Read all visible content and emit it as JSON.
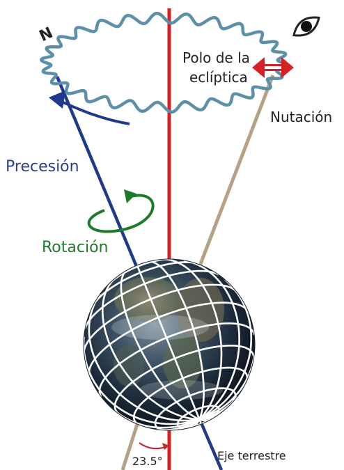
{
  "labels": {
    "north": "N",
    "ecliptic_pole_line1": "Polo de la",
    "ecliptic_pole_line2": "eclíptica",
    "nutation": "Nutación",
    "precession": "Precesión",
    "rotation": "Rotación",
    "earth_axis": "Eje terrestre",
    "tilt_angle": "23.5°"
  },
  "icons": {
    "eye": "eye-icon",
    "double_arrow": "double-arrow-icon"
  },
  "colors": {
    "ecliptic_axis": "#d42027",
    "earth_axis": "#1f3a8c",
    "precession_text": "#2b3d8f",
    "cone_edge": "#b5a286",
    "nutation_wave": "#5c8fa8",
    "rotation": "#1f7a2c",
    "grid": "#ffffff",
    "text": "#222222",
    "angle_arc": "#c0282e"
  }
}
